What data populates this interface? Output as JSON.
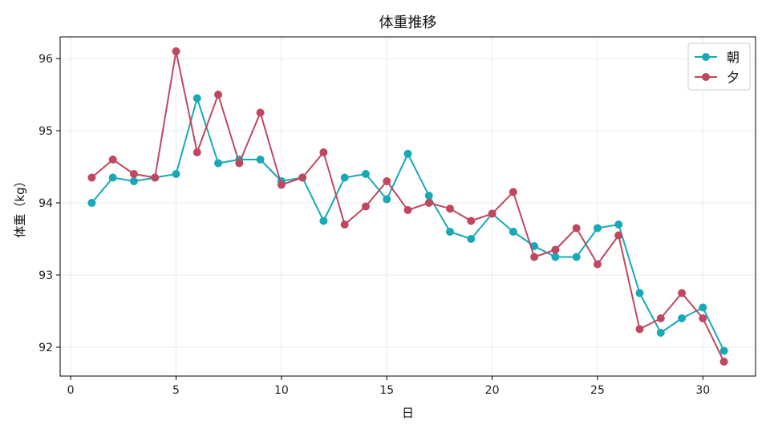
{
  "chart_data": {
    "type": "line",
    "title": "体重推移",
    "xlabel": "日",
    "ylabel": "体重（kg）",
    "xlim": [
      -0.5,
      32.5
    ],
    "ylim": [
      91.6,
      96.3
    ],
    "xticks": [
      0,
      5,
      10,
      15,
      20,
      25,
      30
    ],
    "yticks": [
      92,
      93,
      94,
      95,
      96
    ],
    "grid": true,
    "legend_position": "top-right",
    "x": [
      1,
      2,
      3,
      4,
      5,
      6,
      7,
      8,
      9,
      10,
      11,
      12,
      13,
      14,
      15,
      16,
      17,
      18,
      19,
      20,
      21,
      22,
      23,
      24,
      25,
      26,
      27,
      28,
      29,
      30,
      31
    ],
    "series": [
      {
        "name": "朝",
        "color": "#17a9b6",
        "values": [
          94.0,
          94.35,
          94.3,
          94.35,
          94.4,
          95.45,
          94.55,
          94.6,
          94.6,
          94.3,
          94.35,
          93.75,
          94.35,
          94.4,
          94.05,
          94.68,
          94.1,
          93.6,
          93.5,
          93.85,
          93.6,
          93.4,
          93.25,
          93.25,
          93.65,
          93.7,
          92.75,
          92.2,
          92.4,
          92.55,
          91.95
        ]
      },
      {
        "name": "夕",
        "color": "#c0475f",
        "values": [
          94.35,
          94.6,
          94.4,
          94.35,
          96.1,
          94.7,
          95.5,
          94.55,
          95.25,
          94.25,
          94.35,
          94.7,
          93.7,
          93.95,
          94.3,
          93.9,
          94.0,
          93.92,
          93.75,
          93.85,
          94.15,
          93.25,
          93.35,
          93.65,
          93.15,
          93.55,
          92.25,
          92.4,
          92.75,
          92.4,
          91.8
        ]
      }
    ]
  }
}
